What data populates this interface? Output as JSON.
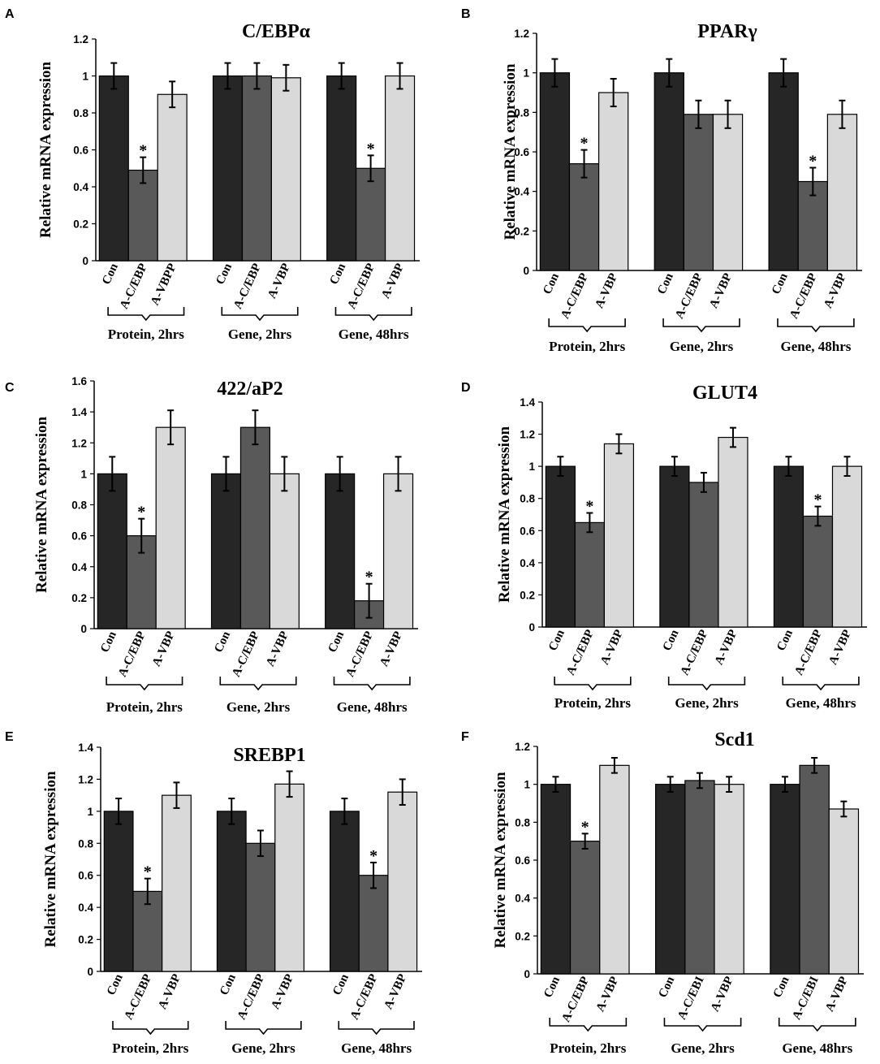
{
  "colors": {
    "con": "#262626",
    "a_cebp": "#595959",
    "a_vbp": "#d9d9d9",
    "stroke": "#000000"
  },
  "chart_data": [
    {
      "panel": "A",
      "type": "bar",
      "title": "C/EBPα",
      "ylabel": "Relative mRNA expression",
      "ylim": [
        0,
        1.2
      ],
      "yticks": [
        "0",
        "0.2",
        "0.4",
        "0.6",
        "0.8",
        "1",
        "1.2"
      ],
      "groups": [
        {
          "label": "Protein, 2hrs",
          "bars": [
            {
              "label": "Con",
              "series": "con",
              "value": 1.0,
              "err": 0.07,
              "sig": false
            },
            {
              "label": "A-C/EBP",
              "series": "a_cebp",
              "value": 0.49,
              "err": 0.07,
              "sig": true
            },
            {
              "label": "A-VBPP",
              "series": "a_vbp",
              "value": 0.9,
              "err": 0.07,
              "sig": false
            }
          ]
        },
        {
          "label": "Gene, 2hrs",
          "bars": [
            {
              "label": "Con",
              "series": "con",
              "value": 1.0,
              "err": 0.07,
              "sig": false
            },
            {
              "label": "A-C/EBP",
              "series": "a_cebp",
              "value": 1.0,
              "err": 0.07,
              "sig": false
            },
            {
              "label": "A-VBP",
              "series": "a_vbp",
              "value": 0.99,
              "err": 0.07,
              "sig": false
            }
          ]
        },
        {
          "label": "Gene, 48hrs",
          "bars": [
            {
              "label": "Con",
              "series": "con",
              "value": 1.0,
              "err": 0.07,
              "sig": false
            },
            {
              "label": "A-C/EBP",
              "series": "a_cebp",
              "value": 0.5,
              "err": 0.07,
              "sig": true
            },
            {
              "label": "A-VBP",
              "series": "a_vbp",
              "value": 1.0,
              "err": 0.07,
              "sig": false
            }
          ]
        }
      ]
    },
    {
      "panel": "B",
      "type": "bar",
      "title": "PPARγ",
      "ylabel": "Relative mRNA expression",
      "ylim": [
        0,
        1.2
      ],
      "yticks": [
        "0",
        "0.2",
        "0.4",
        "0.6",
        "0.8",
        "1",
        "1.2"
      ],
      "groups": [
        {
          "label": "Protein, 2hrs",
          "bars": [
            {
              "label": "Con",
              "series": "con",
              "value": 1.0,
              "err": 0.07,
              "sig": false
            },
            {
              "label": "A-C/EBP",
              "series": "a_cebp",
              "value": 0.54,
              "err": 0.07,
              "sig": true
            },
            {
              "label": "A-VBP",
              "series": "a_vbp",
              "value": 0.9,
              "err": 0.07,
              "sig": false
            }
          ]
        },
        {
          "label": "Gene, 2hrs",
          "bars": [
            {
              "label": "Con",
              "series": "con",
              "value": 1.0,
              "err": 0.07,
              "sig": false
            },
            {
              "label": "A-C/EBP",
              "series": "a_cebp",
              "value": 0.79,
              "err": 0.07,
              "sig": false
            },
            {
              "label": "A-VBP",
              "series": "a_vbp",
              "value": 0.79,
              "err": 0.07,
              "sig": false
            }
          ]
        },
        {
          "label": "Gene, 48hrs",
          "bars": [
            {
              "label": "Con",
              "series": "con",
              "value": 1.0,
              "err": 0.07,
              "sig": false
            },
            {
              "label": "A-C/EBP",
              "series": "a_cebp",
              "value": 0.45,
              "err": 0.07,
              "sig": true
            },
            {
              "label": "A-VBP",
              "series": "a_vbp",
              "value": 0.79,
              "err": 0.07,
              "sig": false
            }
          ]
        }
      ]
    },
    {
      "panel": "C",
      "type": "bar",
      "title": "422/aP2",
      "ylabel": "Relative mRNA expression",
      "ylim": [
        0,
        1.6
      ],
      "yticks": [
        "0",
        "0.2",
        "0.4",
        "0.6",
        "0.8",
        "1",
        "1.2",
        "1.4",
        "1.6"
      ],
      "groups": [
        {
          "label": "Protein, 2hrs",
          "bars": [
            {
              "label": "Con",
              "series": "con",
              "value": 1.0,
              "err": 0.11,
              "sig": false
            },
            {
              "label": "A-C/EBP",
              "series": "a_cebp",
              "value": 0.6,
              "err": 0.11,
              "sig": true
            },
            {
              "label": "A-VBP",
              "series": "a_vbp",
              "value": 1.3,
              "err": 0.11,
              "sig": false
            }
          ]
        },
        {
          "label": "Gene, 2hrs",
          "bars": [
            {
              "label": "Con",
              "series": "con",
              "value": 1.0,
              "err": 0.11,
              "sig": false
            },
            {
              "label": "A-C/EBP",
              "series": "a_cebp",
              "value": 1.3,
              "err": 0.11,
              "sig": false
            },
            {
              "label": "A-VBP",
              "series": "a_vbp",
              "value": 1.0,
              "err": 0.11,
              "sig": false
            }
          ]
        },
        {
          "label": "Gene, 48hrs",
          "bars": [
            {
              "label": "Con",
              "series": "con",
              "value": 1.0,
              "err": 0.11,
              "sig": false
            },
            {
              "label": "A-C/EBP",
              "series": "a_cebp",
              "value": 0.18,
              "err": 0.11,
              "sig": true
            },
            {
              "label": "A-VBP",
              "series": "a_vbp",
              "value": 1.0,
              "err": 0.11,
              "sig": false
            }
          ]
        }
      ]
    },
    {
      "panel": "D",
      "type": "bar",
      "title": "GLUT4",
      "ylabel": "Relative mRNA expression",
      "ylim": [
        0,
        1.4
      ],
      "yticks": [
        "0",
        "0.2",
        "0.4",
        "0.6",
        "0.8",
        "1",
        "1.2",
        "1.4"
      ],
      "groups": [
        {
          "label": "Protein, 2hrs",
          "bars": [
            {
              "label": "Con",
              "series": "con",
              "value": 1.0,
              "err": 0.06,
              "sig": false
            },
            {
              "label": "A-C/EBP",
              "series": "a_cebp",
              "value": 0.65,
              "err": 0.06,
              "sig": true
            },
            {
              "label": "A-VBP",
              "series": "a_vbp",
              "value": 1.14,
              "err": 0.06,
              "sig": false
            }
          ]
        },
        {
          "label": "Gene, 2hrs",
          "bars": [
            {
              "label": "Con",
              "series": "con",
              "value": 1.0,
              "err": 0.06,
              "sig": false
            },
            {
              "label": "A-C/EBP",
              "series": "a_cebp",
              "value": 0.9,
              "err": 0.06,
              "sig": false
            },
            {
              "label": "A-VBP",
              "series": "a_vbp",
              "value": 1.18,
              "err": 0.06,
              "sig": false
            }
          ]
        },
        {
          "label": "Gene, 48hrs",
          "bars": [
            {
              "label": "Con",
              "series": "con",
              "value": 1.0,
              "err": 0.06,
              "sig": false
            },
            {
              "label": "A-C/EBP",
              "series": "a_cebp",
              "value": 0.69,
              "err": 0.06,
              "sig": true
            },
            {
              "label": "A-VBP",
              "series": "a_vbp",
              "value": 1.0,
              "err": 0.06,
              "sig": false
            }
          ]
        }
      ]
    },
    {
      "panel": "E",
      "type": "bar",
      "title": "SREBP1",
      "ylabel": "Relative mRNA expression",
      "ylim": [
        0,
        1.4
      ],
      "yticks": [
        "0",
        "0.2",
        "0.4",
        "0.6",
        "0.8",
        "1",
        "1.2",
        "1.4"
      ],
      "groups": [
        {
          "label": "Protein, 2hrs",
          "bars": [
            {
              "label": "Con",
              "series": "con",
              "value": 1.0,
              "err": 0.08,
              "sig": false
            },
            {
              "label": "A-C/EBP",
              "series": "a_cebp",
              "value": 0.5,
              "err": 0.08,
              "sig": true
            },
            {
              "label": "A-VBP",
              "series": "a_vbp",
              "value": 1.1,
              "err": 0.08,
              "sig": false
            }
          ]
        },
        {
          "label": "Gene, 2hrs",
          "bars": [
            {
              "label": "Con",
              "series": "con",
              "value": 1.0,
              "err": 0.08,
              "sig": false
            },
            {
              "label": "A-C/EBP",
              "series": "a_cebp",
              "value": 0.8,
              "err": 0.08,
              "sig": false
            },
            {
              "label": "A-VBP",
              "series": "a_vbp",
              "value": 1.17,
              "err": 0.08,
              "sig": false
            }
          ]
        },
        {
          "label": "Gene, 48hrs",
          "bars": [
            {
              "label": "Con",
              "series": "con",
              "value": 1.0,
              "err": 0.08,
              "sig": false
            },
            {
              "label": "A-C/EBP",
              "series": "a_cebp",
              "value": 0.6,
              "err": 0.08,
              "sig": true
            },
            {
              "label": "A-VBP",
              "series": "a_vbp",
              "value": 1.12,
              "err": 0.08,
              "sig": false
            }
          ]
        }
      ]
    },
    {
      "panel": "F",
      "type": "bar",
      "title": "Scd1",
      "ylabel": "Relative mRNA expression",
      "ylim": [
        0,
        1.2
      ],
      "yticks": [
        "0",
        "0.2",
        "0.4",
        "0.6",
        "0.8",
        "1",
        "1.2"
      ],
      "groups": [
        {
          "label": "Protein, 2hrs",
          "bars": [
            {
              "label": "Con",
              "series": "con",
              "value": 1.0,
              "err": 0.04,
              "sig": false
            },
            {
              "label": "A-C/EBP",
              "series": "a_cebp",
              "value": 0.7,
              "err": 0.04,
              "sig": true
            },
            {
              "label": "A-VBP",
              "series": "a_vbp",
              "value": 1.1,
              "err": 0.04,
              "sig": false
            }
          ]
        },
        {
          "label": "Gene, 2hrs",
          "bars": [
            {
              "label": "Con",
              "series": "con",
              "value": 1.0,
              "err": 0.04,
              "sig": false
            },
            {
              "label": "A-C/EBI",
              "series": "a_cebp",
              "value": 1.02,
              "err": 0.04,
              "sig": false
            },
            {
              "label": "A-VBP",
              "series": "a_vbp",
              "value": 1.0,
              "err": 0.04,
              "sig": false
            }
          ]
        },
        {
          "label": "Gene, 48hrs",
          "bars": [
            {
              "label": "Con",
              "series": "con",
              "value": 1.0,
              "err": 0.04,
              "sig": false
            },
            {
              "label": "A-C/EBI",
              "series": "a_cebp",
              "value": 1.1,
              "err": 0.04,
              "sig": false
            },
            {
              "label": "A-VBP",
              "series": "a_vbp",
              "value": 0.87,
              "err": 0.04,
              "sig": false
            }
          ]
        }
      ]
    }
  ]
}
